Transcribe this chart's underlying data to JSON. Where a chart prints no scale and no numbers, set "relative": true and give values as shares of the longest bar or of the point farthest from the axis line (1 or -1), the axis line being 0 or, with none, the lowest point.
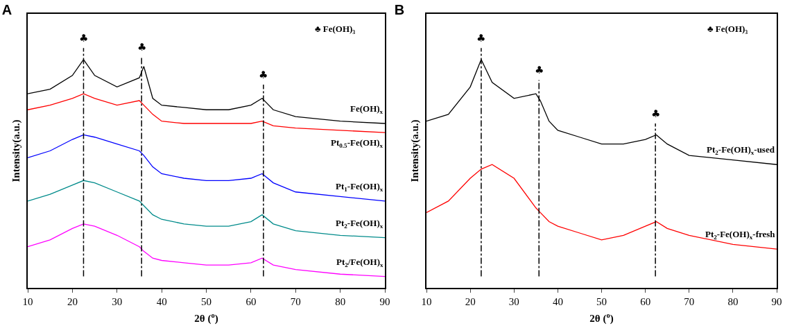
{
  "chart_data": [
    {
      "type": "line",
      "title": "A",
      "relative": true,
      "xlabel": "2θ ($^{o}$)",
      "ylabel": "Intensity(a.u.)",
      "xlim": [
        10,
        90
      ],
      "xticks": [
        10,
        20,
        30,
        40,
        50,
        60,
        70,
        80,
        90
      ],
      "grid": false,
      "legend": false,
      "marker": "none",
      "line_style": "solid",
      "x": [
        10,
        15,
        20,
        22.5,
        25,
        30,
        35,
        36,
        38,
        40,
        45,
        50,
        55,
        60,
        62.5,
        65,
        70,
        80,
        90
      ],
      "series": [
        {
          "name": "Fe(OH)$_{x}$",
          "color": "#000000",
          "values": [
            0.85,
            0.87,
            0.93,
            1.0,
            0.93,
            0.88,
            0.92,
            0.97,
            0.83,
            0.8,
            0.79,
            0.78,
            0.78,
            0.8,
            0.83,
            0.78,
            0.75,
            0.73,
            0.72
          ]
        },
        {
          "name": "Pt$_{0.5}$-Fe(OH)$_{x}$",
          "color": "#ff0000",
          "values": [
            0.78,
            0.8,
            0.83,
            0.85,
            0.83,
            0.8,
            0.82,
            0.8,
            0.76,
            0.73,
            0.72,
            0.72,
            0.72,
            0.72,
            0.73,
            0.71,
            0.7,
            0.69,
            0.68
          ]
        },
        {
          "name": "Pt$_{1}$-Fe(OH)$_{x}$",
          "color": "#0000ff",
          "values": [
            0.57,
            0.6,
            0.65,
            0.67,
            0.66,
            0.63,
            0.6,
            0.58,
            0.53,
            0.5,
            0.48,
            0.47,
            0.47,
            0.48,
            0.5,
            0.46,
            0.42,
            0.4,
            0.38
          ]
        },
        {
          "name": "Pt$_{2}$-Fe(OH)$_{x}$",
          "color": "#008b8b",
          "values": [
            0.38,
            0.41,
            0.45,
            0.47,
            0.46,
            0.42,
            0.38,
            0.36,
            0.32,
            0.3,
            0.28,
            0.27,
            0.27,
            0.29,
            0.32,
            0.28,
            0.25,
            0.23,
            0.22
          ]
        },
        {
          "name": "Pt$_{2}$/Fe(OH)$_{x}$",
          "color": "#ff00ff",
          "values": [
            0.18,
            0.21,
            0.26,
            0.28,
            0.27,
            0.23,
            0.18,
            0.16,
            0.13,
            0.12,
            0.11,
            0.1,
            0.1,
            0.11,
            0.13,
            0.1,
            0.08,
            0.06,
            0.05
          ]
        }
      ],
      "ref_lines": [
        {
          "axis": "x",
          "value": 22.5,
          "color": "#000000",
          "line_style": "dashed"
        },
        {
          "axis": "x",
          "value": 35.5,
          "color": "#000000",
          "line_style": "dashed"
        },
        {
          "axis": "x",
          "value": 62.8,
          "color": "#000000",
          "line_style": "dashed"
        }
      ],
      "annotations": [
        {
          "text": "♣",
          "x": 22.5,
          "y": 1.06
        },
        {
          "text": "♣",
          "x": 35.5,
          "y": 1.02
        },
        {
          "text": "♣",
          "x": 62.8,
          "y": 0.9
        },
        "♣ Fe(OH)₃"
      ]
    },
    {
      "type": "line",
      "title": "B",
      "relative": true,
      "xlabel": "2θ ($^{o}$)",
      "ylabel": "Intensity(a.u.)",
      "xlim": [
        10,
        90
      ],
      "xticks": [
        10,
        20,
        30,
        40,
        50,
        60,
        70,
        80,
        90
      ],
      "grid": false,
      "legend": false,
      "marker": "none",
      "line_style": "solid",
      "x": [
        10,
        15,
        20,
        22.5,
        25,
        30,
        35,
        36,
        38,
        40,
        45,
        50,
        55,
        60,
        62.5,
        65,
        70,
        80,
        90
      ],
      "series": [
        {
          "name": "Pt$_{2}$-Fe(OH)$_{x}$-used",
          "color": "#000000",
          "values": [
            0.73,
            0.76,
            0.88,
            1.0,
            0.9,
            0.83,
            0.85,
            0.82,
            0.73,
            0.69,
            0.66,
            0.63,
            0.63,
            0.65,
            0.67,
            0.63,
            0.58,
            0.56,
            0.54
          ]
        },
        {
          "name": "Pt$_{2}$-Fe(OH)$_{x}$-fresh",
          "color": "#ff0000",
          "values": [
            0.33,
            0.38,
            0.48,
            0.52,
            0.54,
            0.48,
            0.35,
            0.33,
            0.29,
            0.27,
            0.24,
            0.21,
            0.23,
            0.27,
            0.29,
            0.26,
            0.23,
            0.19,
            0.17
          ]
        }
      ],
      "ref_lines": [
        {
          "axis": "x",
          "value": 22.5,
          "color": "#000000",
          "line_style": "dashed"
        },
        {
          "axis": "x",
          "value": 35.7,
          "color": "#000000",
          "line_style": "dashed"
        },
        {
          "axis": "x",
          "value": 62.3,
          "color": "#000000",
          "line_style": "dashed"
        }
      ],
      "annotations": [
        {
          "text": "♣",
          "x": 22.5,
          "y": 1.06
        },
        {
          "text": "♣",
          "x": 35.7,
          "y": 0.92
        },
        {
          "text": "♣",
          "x": 62.3,
          "y": 0.73
        },
        "♣ Fe(OH)₃"
      ]
    }
  ]
}
